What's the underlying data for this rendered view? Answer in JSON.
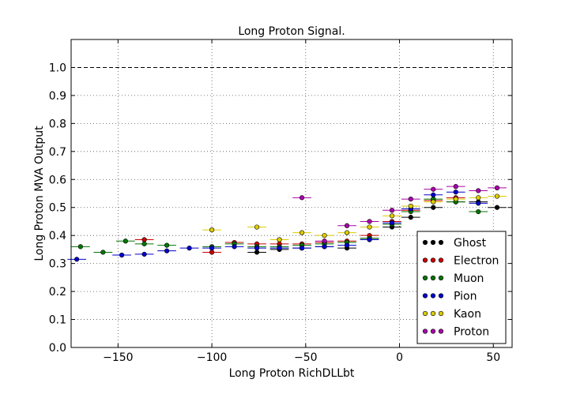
{
  "chart_data": {
    "type": "scatter",
    "title": "Long Proton Signal.",
    "xlabel": "Long Proton RichDLLbt",
    "ylabel": "Long Proton MVA Output",
    "xlim": [
      -175,
      60
    ],
    "ylim": [
      0.0,
      1.1
    ],
    "xticks": [
      -150,
      -100,
      -50,
      0,
      50
    ],
    "xtick_labels": [
      "−150",
      "−100",
      "−50",
      "0",
      "50"
    ],
    "yticks": [
      0.0,
      0.1,
      0.2,
      0.3,
      0.4,
      0.5,
      0.6,
      0.7,
      0.8,
      0.9,
      1.0
    ],
    "ytick_labels": [
      "0.0",
      "0.1",
      "0.2",
      "0.3",
      "0.4",
      "0.5",
      "0.6",
      "0.7",
      "0.8",
      "0.9",
      "1.0"
    ],
    "grid": true,
    "reference_line_y": 1.0,
    "legend_position": "lower-right",
    "bin_half_width": 5,
    "series": [
      {
        "name": "Ghost",
        "color": "#000000",
        "x": [
          -76,
          -64,
          -52,
          -40,
          -28,
          -16,
          -4,
          6,
          18,
          30,
          42,
          52
        ],
        "y": [
          0.34,
          0.35,
          0.355,
          0.36,
          0.355,
          0.39,
          0.43,
          0.465,
          0.5,
          0.52,
          0.52,
          0.5
        ]
      },
      {
        "name": "Electron",
        "color": "#cc0000",
        "x": [
          -136,
          -100,
          -88,
          -76,
          -64,
          -52,
          -40,
          -28,
          -16,
          -4,
          6,
          18,
          30
        ],
        "y": [
          0.385,
          0.34,
          0.375,
          0.37,
          0.37,
          0.37,
          0.375,
          0.38,
          0.4,
          0.45,
          0.49,
          0.525,
          0.535
        ]
      },
      {
        "name": "Muon",
        "color": "#007700",
        "x": [
          -170,
          -158,
          -146,
          -136,
          -124,
          -100,
          -88,
          -76,
          -64,
          -52,
          -40,
          -28,
          -16,
          -4,
          6,
          18,
          30,
          42
        ],
        "y": [
          0.36,
          0.34,
          0.38,
          0.37,
          0.365,
          0.36,
          0.37,
          0.36,
          0.36,
          0.365,
          0.37,
          0.375,
          0.39,
          0.44,
          0.485,
          0.53,
          0.52,
          0.485
        ]
      },
      {
        "name": "Pion",
        "color": "#0000cc",
        "x": [
          -172,
          -148,
          -136,
          -124,
          -112,
          -100,
          -88,
          -76,
          -64,
          -52,
          -40,
          -28,
          -16,
          -4,
          6,
          18,
          30,
          42
        ],
        "y": [
          0.315,
          0.33,
          0.333,
          0.345,
          0.355,
          0.355,
          0.36,
          0.355,
          0.355,
          0.355,
          0.36,
          0.365,
          0.385,
          0.445,
          0.495,
          0.545,
          0.555,
          0.515
        ]
      },
      {
        "name": "Kaon",
        "color": "#ddcc00",
        "x": [
          -100,
          -76,
          -64,
          -52,
          -40,
          -28,
          -16,
          -4,
          6,
          18,
          30,
          42,
          52
        ],
        "y": [
          0.42,
          0.43,
          0.385,
          0.41,
          0.4,
          0.41,
          0.43,
          0.47,
          0.505,
          0.52,
          0.53,
          0.535,
          0.54
        ]
      },
      {
        "name": "Proton",
        "color": "#aa00aa",
        "x": [
          -52,
          -40,
          -28,
          -16,
          -4,
          6,
          18,
          30,
          42,
          52
        ],
        "y": [
          0.535,
          0.38,
          0.435,
          0.45,
          0.49,
          0.53,
          0.565,
          0.575,
          0.56,
          0.57
        ]
      }
    ]
  }
}
